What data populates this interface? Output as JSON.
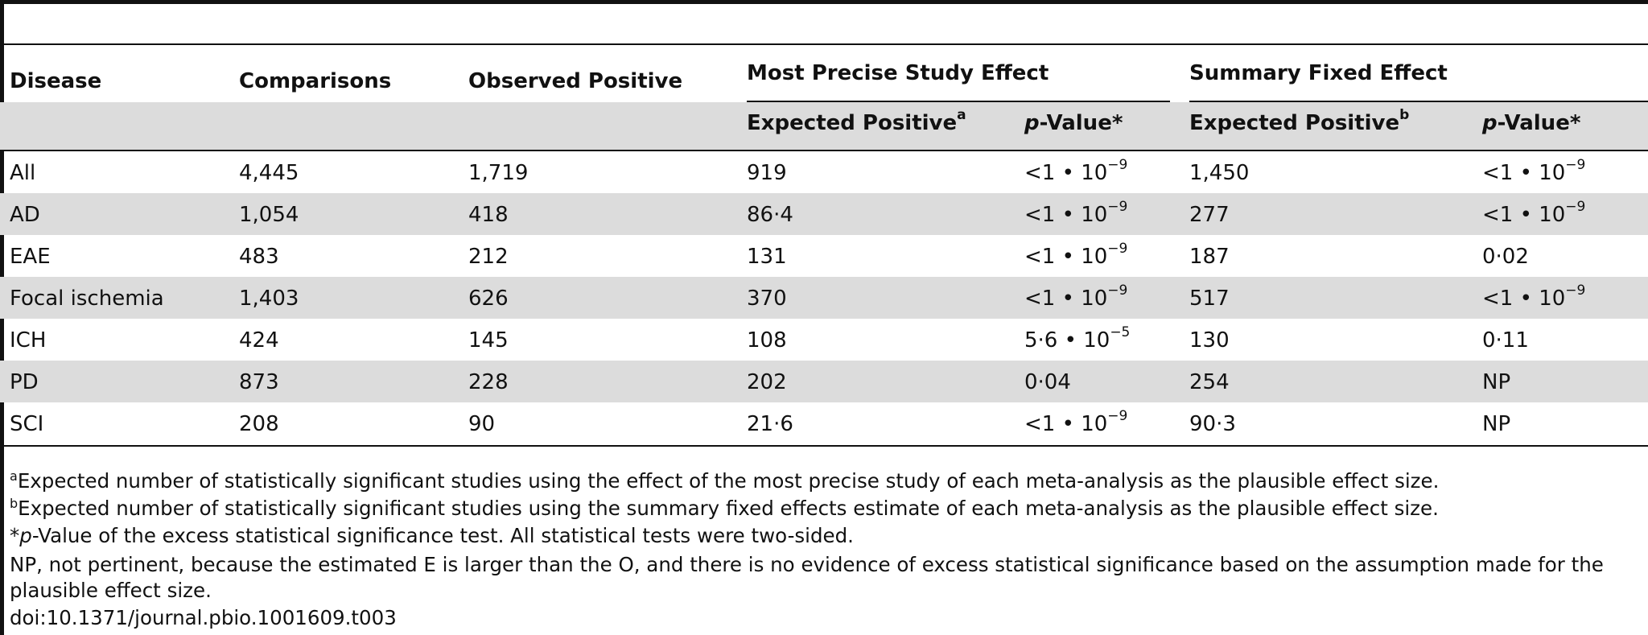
{
  "table": {
    "group_headers": {
      "most_precise": "Most Precise Study Effect",
      "summary_fixed": "Summary Fixed Effect"
    },
    "headers": {
      "disease": "Disease",
      "comparisons": "Comparisons",
      "observed_positive": "Observed Positive",
      "expected_positive_a": "Expected Positive",
      "expected_positive_a_sup": "a",
      "p_value_1_p": "p",
      "p_value_1_rest": "-Value*",
      "expected_positive_b": "Expected Positive",
      "expected_positive_b_sup": "b",
      "p_value_2_p": "p",
      "p_value_2_rest": "-Value*"
    },
    "rows": [
      {
        "disease": "All",
        "comparisons": "4,445",
        "observed": "1,719",
        "exp_a": "919",
        "p1": "<1 • 10",
        "p1_exp": "−9",
        "exp_b": "1,450",
        "p2": "<1 • 10",
        "p2_exp": "−9"
      },
      {
        "disease": "AD",
        "comparisons": "1,054",
        "observed": "418",
        "exp_a": "86·4",
        "p1": "<1 • 10",
        "p1_exp": "−9",
        "exp_b": "277",
        "p2": "<1 • 10",
        "p2_exp": "−9"
      },
      {
        "disease": "EAE",
        "comparisons": "483",
        "observed": "212",
        "exp_a": "131",
        "p1": "<1 • 10",
        "p1_exp": "−9",
        "exp_b": "187",
        "p2": "0·02",
        "p2_exp": ""
      },
      {
        "disease": "Focal ischemia",
        "comparisons": "1,403",
        "observed": "626",
        "exp_a": "370",
        "p1": "<1 • 10",
        "p1_exp": "−9",
        "exp_b": "517",
        "p2": "<1 • 10",
        "p2_exp": "−9"
      },
      {
        "disease": "ICH",
        "comparisons": "424",
        "observed": "145",
        "exp_a": "108",
        "p1": "5·6 • 10",
        "p1_exp": "−5",
        "exp_b": "130",
        "p2": "0·11",
        "p2_exp": ""
      },
      {
        "disease": "PD",
        "comparisons": "873",
        "observed": "228",
        "exp_a": "202",
        "p1": "0·04",
        "p1_exp": "",
        "exp_b": "254",
        "p2": "NP",
        "p2_exp": ""
      },
      {
        "disease": "SCI",
        "comparisons": "208",
        "observed": "90",
        "exp_a": "21·6",
        "p1": "<1 • 10",
        "p1_exp": "−9",
        "exp_b": "90·3",
        "p2": "NP",
        "p2_exp": ""
      }
    ]
  },
  "footnotes": {
    "a_mark": "a",
    "a_text": "Expected number of statistically significant studies using the effect of the most precise study of each meta-analysis as the plausible effect size.",
    "b_mark": "b",
    "b_text": "Expected number of statistically significant studies using the summary fixed effects estimate of each meta-analysis as the plausible effect size.",
    "star_mark": "*",
    "star_p": "p",
    "star_text": "-Value of the excess statistical significance test. All statistical tests were two-sided.",
    "np_line1": "NP, not pertinent, because the estimated E is larger than the O, and there is no evidence of excess statistical significance based on the assumption made for the",
    "np_line2": "plausible effect size.",
    "doi": "doi:10.1371/journal.pbio.1001609.t003"
  }
}
